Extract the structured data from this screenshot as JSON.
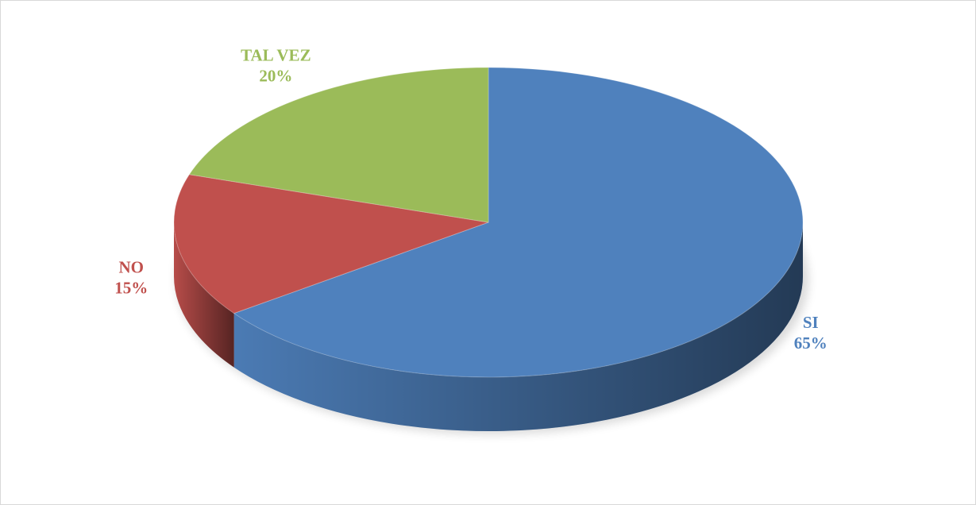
{
  "chart_data": {
    "type": "pie",
    "categories": [
      "SI",
      "NO",
      "TAL VEZ"
    ],
    "values": [
      65,
      15,
      20
    ],
    "value_labels": [
      "65%",
      "15%",
      "20%"
    ],
    "colors": [
      "#4f81bd",
      "#c0504d",
      "#9bbb59"
    ]
  }
}
